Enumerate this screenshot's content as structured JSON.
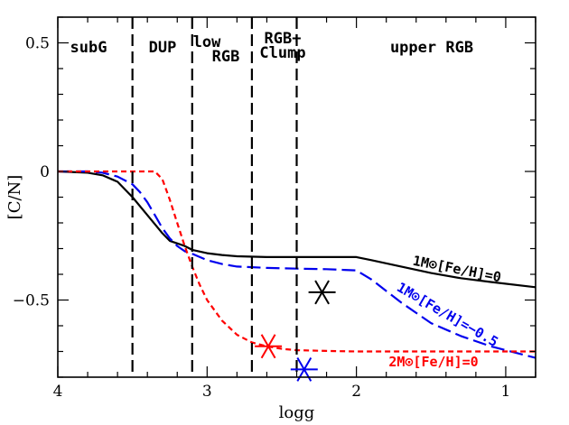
{
  "chart_data": {
    "type": "line",
    "xlabel": "logg",
    "ylabel": "[C/N]",
    "xlim": [
      4.0,
      0.8
    ],
    "ylim": [
      -0.8,
      0.6
    ],
    "x_reversed": true,
    "xticks": [
      4,
      3,
      2,
      1
    ],
    "xtick_labels": [
      "4",
      "3",
      "2",
      "1"
    ],
    "yticks": [
      0.5,
      0,
      -0.5
    ],
    "ytick_labels": [
      "0.5",
      "0",
      "−0.5"
    ],
    "grid": false,
    "regions": [
      {
        "name": "subG",
        "label_lines": [
          "subG"
        ]
      },
      {
        "name": "DUP",
        "label_lines": [
          "DUP"
        ]
      },
      {
        "name": "low RGB",
        "label_lines": [
          "low",
          "RGB"
        ]
      },
      {
        "name": "RGB+Clump",
        "label_lines": [
          "RGB+",
          "Clump"
        ]
      },
      {
        "name": "upper RGB",
        "label_lines": [
          "upper RGB"
        ]
      }
    ],
    "boundaries": [
      3.5,
      3.1,
      2.7,
      2.4
    ],
    "series": [
      {
        "name": "1M⊙[Fe/H]=0",
        "label_text": "1M⊙[Fe/H]=0",
        "color": "#000000",
        "style": "solid",
        "x": [
          4.0,
          3.8,
          3.7,
          3.6,
          3.5,
          3.4,
          3.3,
          3.25,
          3.15,
          3.1,
          3.0,
          2.9,
          2.8,
          2.6,
          2.4,
          2.2,
          2.0,
          1.9,
          1.7,
          1.5,
          1.3,
          1.1,
          0.8
        ],
        "y": [
          0.0,
          -0.005,
          -0.015,
          -0.04,
          -0.1,
          -0.17,
          -0.24,
          -0.27,
          -0.29,
          -0.305,
          -0.318,
          -0.325,
          -0.33,
          -0.333,
          -0.333,
          -0.333,
          -0.333,
          -0.345,
          -0.37,
          -0.395,
          -0.415,
          -0.43,
          -0.45
        ]
      },
      {
        "name": "1M⊙[Fe/H]=−0.5",
        "label_text": "1M⊙[Fe/H]=−0.5",
        "color": "#0000ee",
        "style": "longdash",
        "x": [
          4.0,
          3.8,
          3.7,
          3.6,
          3.5,
          3.45,
          3.4,
          3.35,
          3.3,
          3.25,
          3.2,
          3.15,
          3.1,
          3.0,
          2.9,
          2.8,
          2.6,
          2.4,
          2.2,
          2.0,
          1.9,
          1.7,
          1.5,
          1.3,
          1.1,
          0.8
        ],
        "y": [
          0.0,
          0.0,
          -0.005,
          -0.02,
          -0.05,
          -0.08,
          -0.12,
          -0.17,
          -0.22,
          -0.26,
          -0.29,
          -0.31,
          -0.32,
          -0.345,
          -0.36,
          -0.37,
          -0.375,
          -0.378,
          -0.38,
          -0.385,
          -0.42,
          -0.51,
          -0.59,
          -0.64,
          -0.68,
          -0.725
        ]
      },
      {
        "name": "2M⊙[Fe/H]=0",
        "label_text": "2M⊙[Fe/H]=0",
        "color": "#ff0000",
        "style": "shortdash",
        "x": [
          4.0,
          3.6,
          3.4,
          3.35,
          3.3,
          3.25,
          3.2,
          3.15,
          3.1,
          3.05,
          3.0,
          2.9,
          2.8,
          2.7,
          2.6,
          2.5,
          2.4,
          2.2,
          2.0,
          1.5,
          1.0,
          0.8
        ],
        "y": [
          0.0,
          0.0,
          0.0,
          0.0,
          -0.03,
          -0.11,
          -0.2,
          -0.29,
          -0.37,
          -0.44,
          -0.5,
          -0.58,
          -0.635,
          -0.665,
          -0.68,
          -0.69,
          -0.695,
          -0.698,
          -0.7,
          -0.7,
          -0.7,
          -0.7
        ]
      }
    ],
    "markers": [
      {
        "x": 2.59,
        "y": -0.68,
        "color": "#ff0000",
        "shape": "asterisk"
      },
      {
        "x": 2.35,
        "y": -0.77,
        "color": "#0000ee",
        "shape": "asterisk"
      },
      {
        "x": 2.23,
        "y": -0.47,
        "color": "#000000",
        "shape": "asterisk"
      }
    ]
  }
}
